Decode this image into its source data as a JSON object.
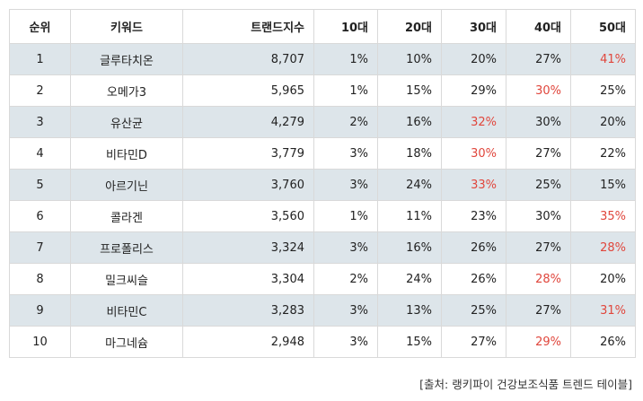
{
  "headers": [
    "순위",
    "키워드",
    "트랜드지수",
    "10대",
    "20대",
    "30대",
    "40대",
    "50대"
  ],
  "rows": [
    {
      "rank": "1",
      "keyword": "글루타치온",
      "index": "8,707",
      "a10": "1%",
      "a20": "10%",
      "a30": "20%",
      "a40": "27%",
      "a50": "41%",
      "highlight": "a50"
    },
    {
      "rank": "2",
      "keyword": "오메가3",
      "index": "5,965",
      "a10": "1%",
      "a20": "15%",
      "a30": "29%",
      "a40": "30%",
      "a50": "25%",
      "highlight": "a40"
    },
    {
      "rank": "3",
      "keyword": "유산균",
      "index": "4,279",
      "a10": "2%",
      "a20": "16%",
      "a30": "32%",
      "a40": "30%",
      "a50": "20%",
      "highlight": "a30"
    },
    {
      "rank": "4",
      "keyword": "비타민D",
      "index": "3,779",
      "a10": "3%",
      "a20": "18%",
      "a30": "30%",
      "a40": "27%",
      "a50": "22%",
      "highlight": "a30"
    },
    {
      "rank": "5",
      "keyword": "아르기닌",
      "index": "3,760",
      "a10": "3%",
      "a20": "24%",
      "a30": "33%",
      "a40": "25%",
      "a50": "15%",
      "highlight": "a30"
    },
    {
      "rank": "6",
      "keyword": "콜라겐",
      "index": "3,560",
      "a10": "1%",
      "a20": "11%",
      "a30": "23%",
      "a40": "30%",
      "a50": "35%",
      "highlight": "a50"
    },
    {
      "rank": "7",
      "keyword": "프로폴리스",
      "index": "3,324",
      "a10": "3%",
      "a20": "16%",
      "a30": "26%",
      "a40": "27%",
      "a50": "28%",
      "highlight": "a50"
    },
    {
      "rank": "8",
      "keyword": "밀크씨슬",
      "index": "3,304",
      "a10": "2%",
      "a20": "24%",
      "a30": "26%",
      "a40": "28%",
      "a50": "20%",
      "highlight": "a40"
    },
    {
      "rank": "9",
      "keyword": "비타민C",
      "index": "3,283",
      "a10": "3%",
      "a20": "13%",
      "a30": "25%",
      "a40": "27%",
      "a50": "31%",
      "highlight": "a50"
    },
    {
      "rank": "10",
      "keyword": "마그네슘",
      "index": "2,948",
      "a10": "3%",
      "a20": "15%",
      "a30": "27%",
      "a40": "29%",
      "a50": "26%",
      "highlight": "a40"
    }
  ],
  "colors": {
    "highlight": "#e0463c",
    "shade": "#dde5ea",
    "border": "#d9d9d9"
  },
  "source": "[출처: 랭키파이 건강보조식품 트렌드 테이블]"
}
